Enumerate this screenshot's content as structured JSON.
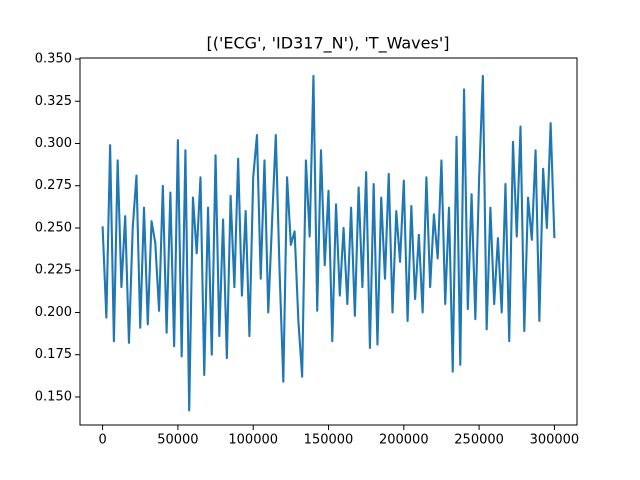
{
  "chart_data": {
    "type": "line",
    "title": "[('ECG', 'ID317_N'), 'T_Waves']",
    "x": [
      0,
      2500,
      5000,
      7500,
      10000,
      12500,
      15000,
      17500,
      20000,
      22500,
      25000,
      27500,
      30000,
      32500,
      35000,
      37500,
      40000,
      42500,
      45000,
      47500,
      50000,
      52500,
      55000,
      57500,
      60000,
      62500,
      65000,
      67500,
      70000,
      72500,
      75000,
      77500,
      80000,
      82500,
      85000,
      87500,
      90000,
      92500,
      95000,
      97500,
      100000,
      102500,
      105000,
      107500,
      110000,
      112500,
      115000,
      117500,
      120000,
      122500,
      125000,
      127500,
      130000,
      132500,
      135000,
      137500,
      140000,
      142500,
      145000,
      147500,
      150000,
      152500,
      155000,
      157500,
      160000,
      162500,
      165000,
      167500,
      170000,
      172500,
      175000,
      177500,
      180000,
      182500,
      185000,
      187500,
      190000,
      192500,
      195000,
      197500,
      200000,
      202500,
      205000,
      207500,
      210000,
      212500,
      215000,
      217500,
      220000,
      222500,
      225000,
      227500,
      230000,
      232500,
      235000,
      237500,
      240000,
      242500,
      245000,
      247500,
      250000,
      252500,
      255000,
      257500,
      260000,
      262500,
      265000,
      267500,
      270000,
      272500,
      275000,
      277500,
      280000,
      282500,
      285000,
      287500,
      290000,
      292500,
      295000,
      297500,
      300000
    ],
    "series": [
      {
        "name": "T_Waves",
        "color": "#1f77b4",
        "values": [
          0.251,
          0.197,
          0.299,
          0.183,
          0.29,
          0.215,
          0.257,
          0.182,
          0.25,
          0.281,
          0.191,
          0.262,
          0.193,
          0.254,
          0.241,
          0.201,
          0.275,
          0.188,
          0.271,
          0.18,
          0.302,
          0.174,
          0.296,
          0.142,
          0.268,
          0.235,
          0.28,
          0.163,
          0.262,
          0.175,
          0.293,
          0.186,
          0.255,
          0.173,
          0.269,
          0.215,
          0.291,
          0.21,
          0.26,
          0.186,
          0.28,
          0.305,
          0.22,
          0.29,
          0.2,
          0.253,
          0.305,
          0.225,
          0.159,
          0.28,
          0.24,
          0.248,
          0.195,
          0.162,
          0.29,
          0.245,
          0.34,
          0.201,
          0.296,
          0.228,
          0.272,
          0.183,
          0.264,
          0.21,
          0.25,
          0.205,
          0.262,
          0.198,
          0.274,
          0.215,
          0.283,
          0.179,
          0.276,
          0.181,
          0.268,
          0.22,
          0.282,
          0.2,
          0.26,
          0.23,
          0.278,
          0.195,
          0.263,
          0.208,
          0.246,
          0.2,
          0.28,
          0.215,
          0.258,
          0.232,
          0.29,
          0.205,
          0.262,
          0.165,
          0.304,
          0.169,
          0.332,
          0.202,
          0.27,
          0.196,
          0.279,
          0.34,
          0.19,
          0.262,
          0.205,
          0.244,
          0.2,
          0.276,
          0.183,
          0.301,
          0.245,
          0.31,
          0.189,
          0.268,
          0.243,
          0.296,
          0.195,
          0.285,
          0.25,
          0.312,
          0.244
        ]
      }
    ],
    "xlim": [
      -15000,
      315000
    ],
    "ylim": [
      0.1334,
      0.3506
    ],
    "xticks": [
      0,
      50000,
      100000,
      150000,
      200000,
      250000,
      300000
    ],
    "yticks": [
      {
        "value": 0.15,
        "label": "0.150"
      },
      {
        "value": 0.175,
        "label": "0.175"
      },
      {
        "value": 0.2,
        "label": "0.200"
      },
      {
        "value": 0.225,
        "label": "0.225"
      },
      {
        "value": 0.25,
        "label": "0.250"
      },
      {
        "value": 0.275,
        "label": "0.275"
      },
      {
        "value": 0.3,
        "label": "0.300"
      },
      {
        "value": 0.325,
        "label": "0.325"
      },
      {
        "value": 0.35,
        "label": "0.350"
      }
    ]
  }
}
